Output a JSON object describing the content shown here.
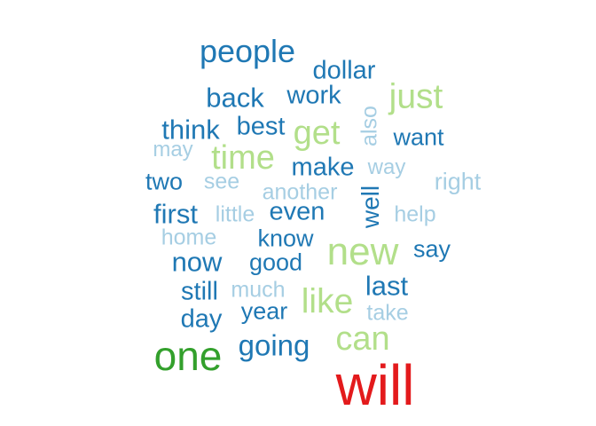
{
  "palette": {
    "dark_blue": "#1f78b4",
    "light_blue": "#a6cee3",
    "light_green": "#b2df8a",
    "green": "#33a02c",
    "red": "#e31a1c"
  },
  "words": [
    {
      "id": "people",
      "text": "people",
      "color": "dark_blue"
    },
    {
      "id": "dollar",
      "text": "dollar",
      "color": "dark_blue"
    },
    {
      "id": "just",
      "text": "just",
      "color": "light_green"
    },
    {
      "id": "back",
      "text": "back",
      "color": "dark_blue"
    },
    {
      "id": "work",
      "text": "work",
      "color": "dark_blue"
    },
    {
      "id": "also",
      "text": "also",
      "color": "light_blue",
      "vertical": true
    },
    {
      "id": "think",
      "text": "think",
      "color": "dark_blue"
    },
    {
      "id": "best",
      "text": "best",
      "color": "dark_blue"
    },
    {
      "id": "get",
      "text": "get",
      "color": "light_green"
    },
    {
      "id": "want",
      "text": "want",
      "color": "dark_blue"
    },
    {
      "id": "may",
      "text": "may",
      "color": "light_blue"
    },
    {
      "id": "time",
      "text": "time",
      "color": "light_green"
    },
    {
      "id": "make",
      "text": "make",
      "color": "dark_blue"
    },
    {
      "id": "way",
      "text": "way",
      "color": "light_blue"
    },
    {
      "id": "two",
      "text": "two",
      "color": "dark_blue"
    },
    {
      "id": "see",
      "text": "see",
      "color": "light_blue"
    },
    {
      "id": "another",
      "text": "another",
      "color": "light_blue"
    },
    {
      "id": "well",
      "text": "well",
      "color": "dark_blue",
      "vertical": true
    },
    {
      "id": "right",
      "text": "right",
      "color": "light_blue"
    },
    {
      "id": "first",
      "text": "first",
      "color": "dark_blue"
    },
    {
      "id": "little",
      "text": "little",
      "color": "light_blue"
    },
    {
      "id": "even",
      "text": "even",
      "color": "dark_blue"
    },
    {
      "id": "help",
      "text": "help",
      "color": "light_blue"
    },
    {
      "id": "home",
      "text": "home",
      "color": "light_blue"
    },
    {
      "id": "know",
      "text": "know",
      "color": "dark_blue"
    },
    {
      "id": "new",
      "text": "new",
      "color": "light_green"
    },
    {
      "id": "say",
      "text": "say",
      "color": "dark_blue"
    },
    {
      "id": "now",
      "text": "now",
      "color": "dark_blue"
    },
    {
      "id": "good",
      "text": "good",
      "color": "dark_blue"
    },
    {
      "id": "still",
      "text": "still",
      "color": "dark_blue"
    },
    {
      "id": "much",
      "text": "much",
      "color": "light_blue"
    },
    {
      "id": "like",
      "text": "like",
      "color": "light_green"
    },
    {
      "id": "last",
      "text": "last",
      "color": "dark_blue"
    },
    {
      "id": "day",
      "text": "day",
      "color": "dark_blue"
    },
    {
      "id": "year",
      "text": "year",
      "color": "dark_blue"
    },
    {
      "id": "take",
      "text": "take",
      "color": "light_blue"
    },
    {
      "id": "can",
      "text": "can",
      "color": "light_green"
    },
    {
      "id": "one",
      "text": "one",
      "color": "green"
    },
    {
      "id": "going",
      "text": "going",
      "color": "dark_blue"
    },
    {
      "id": "will",
      "text": "will",
      "color": "red"
    }
  ]
}
